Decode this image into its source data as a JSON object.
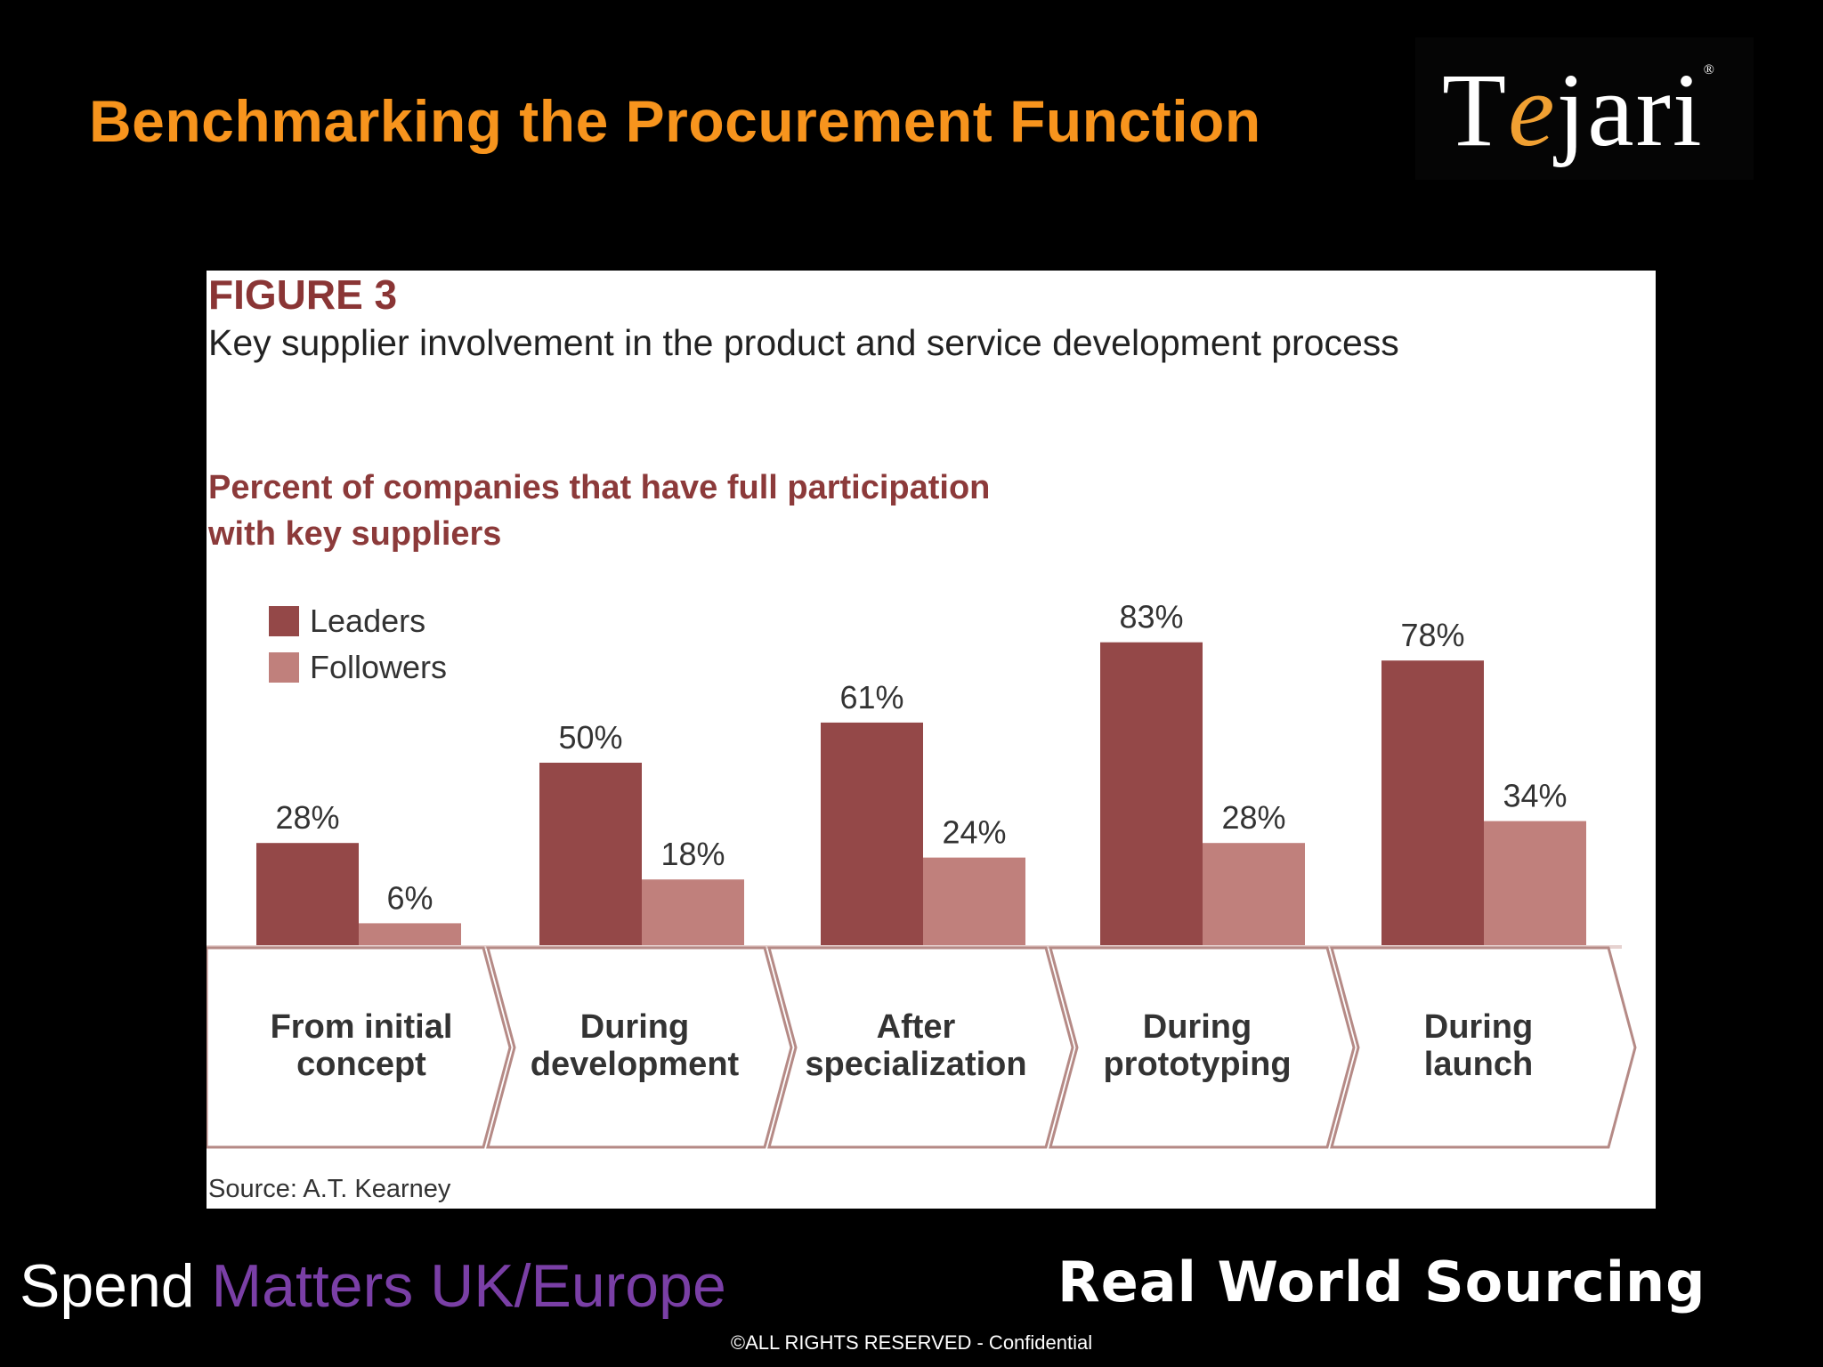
{
  "slide": {
    "title": "Benchmarking the Procurement Function",
    "logo_prefix": "T",
    "logo_e": "e",
    "logo_suffix": "jari",
    "logo_mark": "®",
    "footer_left_plain": "Spend ",
    "footer_left_accent": "Matters UK/Europe",
    "footer_right": "Real World Sourcing",
    "copyright": "©ALL RIGHTS RESERVED - Confidential"
  },
  "figure": {
    "label": "FIGURE 3",
    "subtitle": "Key supplier involvement in the product and service development process",
    "heading_line1": "Percent of companies that have full participation",
    "heading_line2": "with key suppliers",
    "source": "Source: A.T. Kearney"
  },
  "chart_data": {
    "type": "bar",
    "title": "Key supplier involvement in the product and service development process",
    "ylabel": "Percent of companies that have full participation with key suppliers",
    "categories": [
      [
        "From initial",
        "concept"
      ],
      [
        "During",
        "development"
      ],
      [
        "After",
        "specialization"
      ],
      [
        "During",
        "prototyping"
      ],
      [
        "During",
        "launch"
      ]
    ],
    "series": [
      {
        "name": "Leaders",
        "values": [
          28,
          50,
          61,
          83,
          78
        ],
        "color": "#944848"
      },
      {
        "name": "Followers",
        "values": [
          6,
          18,
          24,
          28,
          34
        ],
        "color": "#c0807c"
      }
    ],
    "value_labels": {
      "Leaders": [
        "28%",
        "50%",
        "61%",
        "83%",
        "78%"
      ],
      "Followers": [
        "6%",
        "18%",
        "24%",
        "28%",
        "34%"
      ]
    },
    "ylim": [
      0,
      100
    ],
    "legend_position": "top-left"
  }
}
